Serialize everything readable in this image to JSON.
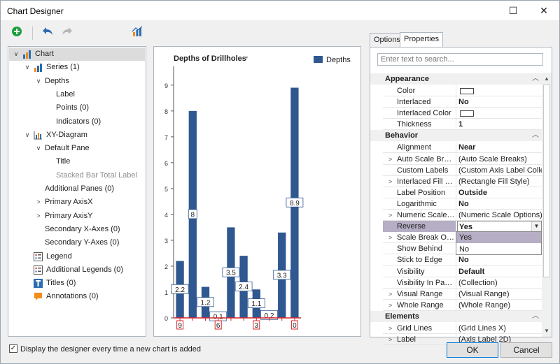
{
  "window": {
    "title": "Chart Designer",
    "minimize": "—",
    "maximize": "☐",
    "close": "✕"
  },
  "tree": [
    {
      "label": "Chart",
      "icon": "bar-chart-icon",
      "indent": 0,
      "expander": "∨",
      "selected": true
    },
    {
      "label": "Series (1)",
      "icon": "series-icon",
      "indent": 1,
      "expander": "∨"
    },
    {
      "label": "Depths",
      "indent": 2,
      "expander": "∨"
    },
    {
      "label": "Label",
      "indent": 3
    },
    {
      "label": "Points (0)",
      "indent": 3
    },
    {
      "label": "Indicators (0)",
      "indent": 3
    },
    {
      "label": "XY-Diagram",
      "icon": "xy-diagram-icon",
      "indent": 1,
      "expander": "∨"
    },
    {
      "label": "Default Pane",
      "indent": 2,
      "expander": "∨"
    },
    {
      "label": "Title",
      "indent": 3
    },
    {
      "label": "Stacked Bar Total Label",
      "indent": 3,
      "disabled": true
    },
    {
      "label": "Additional Panes (0)",
      "indent": 2
    },
    {
      "label": "Primary AxisX",
      "indent": 2,
      "expander": ">"
    },
    {
      "label": "Primary AxisY",
      "indent": 2,
      "expander": ">"
    },
    {
      "label": "Secondary X-Axes (0)",
      "indent": 2
    },
    {
      "label": "Secondary Y-Axes (0)",
      "indent": 2
    },
    {
      "label": "Legend",
      "icon": "legend-icon",
      "indent": 1
    },
    {
      "label": "Additional Legends (0)",
      "icon": "legend-icon",
      "indent": 1
    },
    {
      "label": "Titles (0)",
      "icon": "titles-icon",
      "indent": 1
    },
    {
      "label": "Annotations (0)",
      "icon": "annotation-icon",
      "indent": 1
    }
  ],
  "chart_data": {
    "type": "bar",
    "title": "Depths of Drillholes",
    "series": [
      {
        "name": "Depths",
        "values": [
          2.2,
          8,
          1.2,
          0.1,
          3.5,
          2.4,
          1.1,
          0.2,
          3.3,
          8.9
        ]
      }
    ],
    "value_labels": [
      "2.2",
      "8",
      "1.2",
      "0.1",
      "3.5",
      "2.4",
      "1.1",
      "0.2",
      "3.3",
      "8.9"
    ],
    "y_ticks": [
      "0",
      "1",
      "2",
      "3",
      "4",
      "5",
      "6",
      "7",
      "8",
      "9"
    ],
    "ylim": [
      0,
      9.4
    ],
    "x_axis_labels": [
      {
        "index": 0,
        "text": "9"
      },
      {
        "index": 3,
        "text": "6"
      },
      {
        "index": 6,
        "text": "3"
      },
      {
        "index": 9,
        "text": "0"
      }
    ],
    "bar_color": "#2f5790",
    "axis_color": "#d9262a",
    "legend": "top-right",
    "grid": false
  },
  "props": {
    "tabs": [
      "Options",
      "Properties"
    ],
    "active_tab": "Properties",
    "search_placeholder": "Enter text to search...",
    "categories": [
      {
        "name": "Appearance",
        "rows": [
          {
            "name": "Color",
            "value": "",
            "swatch": "#ffffff"
          },
          {
            "name": "Interlaced",
            "value": "No",
            "bold": true
          },
          {
            "name": "Interlaced Color",
            "value": "",
            "swatch": "#ffffff"
          },
          {
            "name": "Thickness",
            "value": "1",
            "bold": true
          }
        ]
      },
      {
        "name": "Behavior",
        "rows": [
          {
            "name": "Alignment",
            "value": "Near",
            "bold": true
          },
          {
            "name": "Auto Scale Breaks",
            "value": "(Auto Scale Breaks)",
            "expander": true
          },
          {
            "name": "Custom Labels",
            "value": "(Custom Axis Label Collec..."
          },
          {
            "name": "Interlaced Fill Style",
            "value": "(Rectangle Fill Style)",
            "expander": true
          },
          {
            "name": "Label Position",
            "value": "Outside",
            "bold": true
          },
          {
            "name": "Logarithmic",
            "value": "No",
            "bold": true
          },
          {
            "name": "Numeric Scale Op...",
            "value": "(Numeric Scale Options)",
            "expander": true
          },
          {
            "name": "Reverse",
            "value": "Yes",
            "bold": true,
            "highlight": true
          },
          {
            "name": "Scale Break Optio...",
            "value": "",
            "expander": true
          },
          {
            "name": "Show Behind",
            "value": ""
          },
          {
            "name": "Stick to Edge",
            "value": "No",
            "bold": true
          },
          {
            "name": "Visibility",
            "value": "Default",
            "bold": true
          },
          {
            "name": "Visibility In Panes",
            "value": "(Collection)"
          },
          {
            "name": "Visual Range",
            "value": "(Visual Range)",
            "expander": true
          },
          {
            "name": "Whole Range",
            "value": "(Whole Range)",
            "expander": true
          }
        ]
      },
      {
        "name": "Elements",
        "rows": [
          {
            "name": "Grid Lines",
            "value": "(Grid Lines X)",
            "expander": true
          },
          {
            "name": "Label",
            "value": "(Axis Label 2D)",
            "expander": true
          }
        ]
      }
    ],
    "dropdown_options": [
      "Yes",
      "No"
    ]
  },
  "footer": {
    "checkbox_label": "Display the designer every time a new chart is added",
    "checked": true,
    "ok": "OK",
    "cancel": "Cancel"
  }
}
